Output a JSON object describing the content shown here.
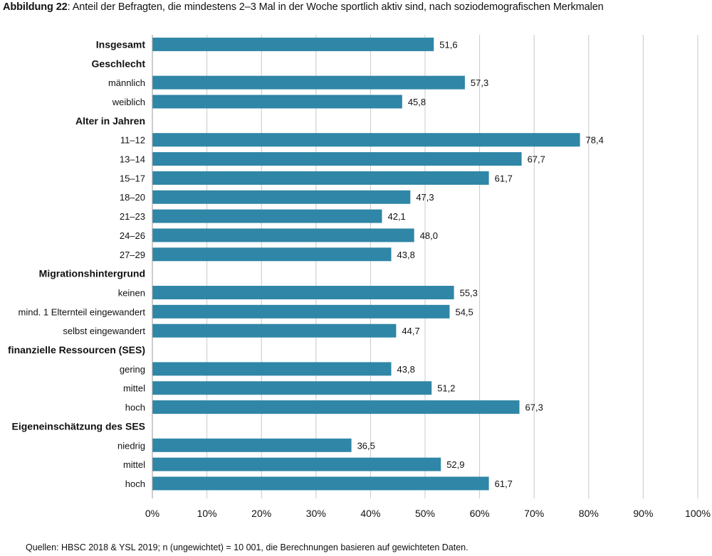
{
  "title": {
    "prefix": "Abbildung 22",
    "text": ": Anteil der Befragten, die mindestens 2–3 Mal in der Woche sportlich aktiv sind, nach soziodemografischen Merkmalen"
  },
  "source": "Quellen: HBSC 2018 & YSL 2019; n (ungewichtet) = 10 001, die Berechnungen basieren auf gewichteten Daten.",
  "colors": {
    "bar": "#2f86a6",
    "grid": "#c8c8c8",
    "text": "#111111"
  },
  "chart_data": {
    "type": "bar",
    "orientation": "horizontal",
    "xlim": [
      0,
      100
    ],
    "x_ticks": [
      "0%",
      "10%",
      "20%",
      "30%",
      "40%",
      "50%",
      "60%",
      "70%",
      "80%",
      "90%",
      "100%"
    ],
    "grid": true,
    "rows": [
      {
        "label": "Insgesamt",
        "heading": true,
        "value": 51.6,
        "value_label": "51,6"
      },
      {
        "label": "Geschlecht",
        "heading": true
      },
      {
        "label": "männlich",
        "value": 57.3,
        "value_label": "57,3"
      },
      {
        "label": "weiblich",
        "value": 45.8,
        "value_label": "45,8"
      },
      {
        "label": "Alter in Jahren",
        "heading": true
      },
      {
        "label": "11–12",
        "value": 78.4,
        "value_label": "78,4"
      },
      {
        "label": "13–14",
        "value": 67.7,
        "value_label": "67,7"
      },
      {
        "label": "15–17",
        "value": 61.7,
        "value_label": "61,7"
      },
      {
        "label": "18–20",
        "value": 47.3,
        "value_label": "47,3"
      },
      {
        "label": "21–23",
        "value": 42.1,
        "value_label": "42,1"
      },
      {
        "label": "24–26",
        "value": 48.0,
        "value_label": "48,0"
      },
      {
        "label": "27–29",
        "value": 43.8,
        "value_label": "43,8"
      },
      {
        "label": "Migrationshintergrund",
        "heading": true
      },
      {
        "label": "keinen",
        "value": 55.3,
        "value_label": "55,3"
      },
      {
        "label": "mind. 1 Elternteil eingewandert",
        "value": 54.5,
        "value_label": "54,5"
      },
      {
        "label": "selbst eingewandert",
        "value": 44.7,
        "value_label": "44,7"
      },
      {
        "label": "finanzielle Ressourcen (SES)",
        "heading": true
      },
      {
        "label": "gering",
        "value": 43.8,
        "value_label": "43,8"
      },
      {
        "label": "mittel",
        "value": 51.2,
        "value_label": "51,2"
      },
      {
        "label": "hoch",
        "value": 67.3,
        "value_label": "67,3"
      },
      {
        "label": "Eigeneinschätzung des SES",
        "heading": true
      },
      {
        "label": "niedrig",
        "value": 36.5,
        "value_label": "36,5"
      },
      {
        "label": "mittel",
        "value": 52.9,
        "value_label": "52,9"
      },
      {
        "label": "hoch",
        "value": 61.7,
        "value_label": "61,7"
      }
    ]
  }
}
